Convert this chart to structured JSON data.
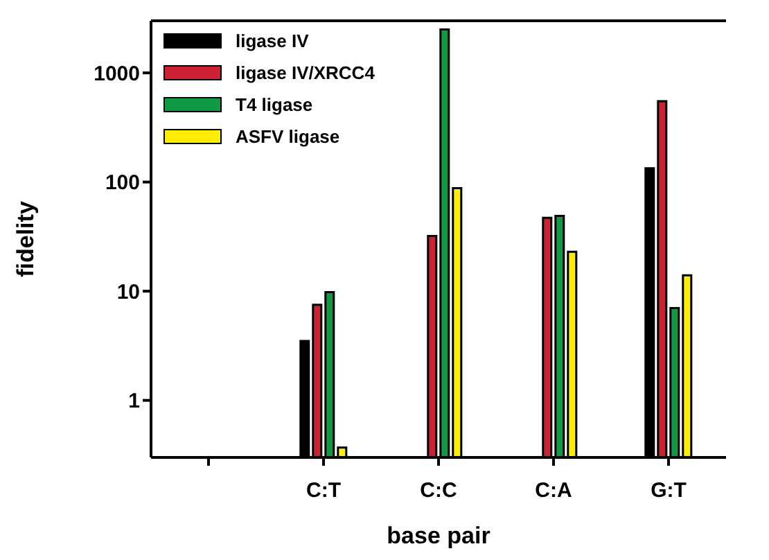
{
  "chart_data": {
    "type": "bar",
    "xlabel": "base pair",
    "ylabel": "fidelity",
    "categories": [
      null,
      "C:T",
      "C:C",
      "C:A",
      "G:T"
    ],
    "series": [
      {
        "name": "ligase IV",
        "color": "#000000",
        "values": [
          null,
          3.5,
          null,
          null,
          134
        ]
      },
      {
        "name": "ligase IV/XRCC4",
        "color": "#cc2233",
        "values": [
          null,
          7.5,
          32,
          47,
          550
        ]
      },
      {
        "name": "T4 ligase",
        "color": "#119944",
        "values": [
          null,
          9.8,
          2500,
          49,
          7
        ]
      },
      {
        "name": "ASFV ligase",
        "color": "#ffee00",
        "values": [
          null,
          0.37,
          88,
          23,
          14
        ]
      }
    ],
    "log": true,
    "ylim": [
      0.3,
      3000
    ],
    "yticks": [
      1,
      10,
      100,
      1000
    ],
    "legend": "top left"
  }
}
